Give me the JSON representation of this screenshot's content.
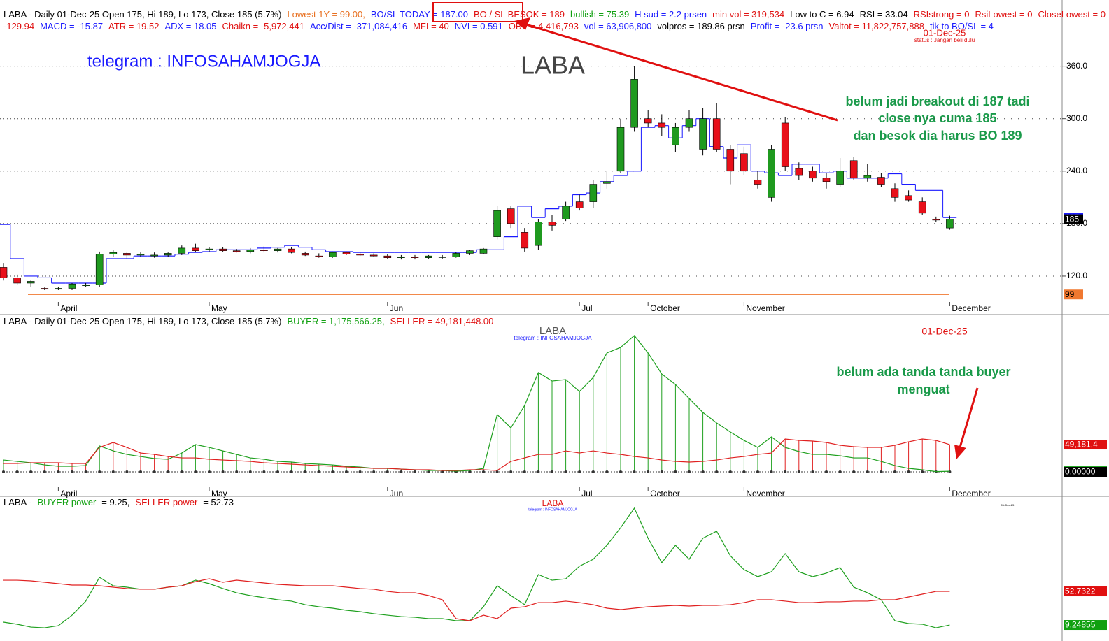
{
  "chart_data": [
    {
      "type": "candlestick",
      "title": "LABA",
      "header": [
        [
          {
            "text": "LABA - Daily 01-Dec-25 Open 175, Hi 189, Lo 173, Close 185 (5.7%)",
            "color": "#000000"
          },
          {
            "text": "Lowest 1Y  = 99.00,",
            "color": "#e87020"
          },
          {
            "text": "BO/SL TODAY  = 187.00",
            "color": "#1a1aff"
          },
          {
            "text": "BO / SL BESOK  = 189",
            "color": "#e01010"
          },
          {
            "text": "bullish = 75.39",
            "color": "#10a010"
          },
          {
            "text": "H sud = 2.2 prsen",
            "color": "#1a1aff"
          },
          {
            "text": "min vol = 319,534",
            "color": "#e01010"
          },
          {
            "text": "Low to C  = 6.94",
            "color": "#000000"
          },
          {
            "text": "RSI = 33.04",
            "color": "#000000"
          },
          {
            "text": "RSIstrong = 0",
            "color": "#e01010"
          },
          {
            "text": "RsiLowest = 0",
            "color": "#e01010"
          },
          {
            "text": "CloseLowest = 0",
            "color": "#e01010"
          },
          {
            "text": "CCI =",
            "color": "#e01010"
          }
        ],
        [
          {
            "text": "-129.94",
            "color": "#e01010"
          },
          {
            "text": "MACD = -15.87",
            "color": "#1a1aff"
          },
          {
            "text": "ATR = 19.52",
            "color": "#e01010"
          },
          {
            "text": "ADX = 18.05",
            "color": "#1a1aff"
          },
          {
            "text": "Chaikn = -5,972,441",
            "color": "#e01010"
          },
          {
            "text": "Acc/Dist = -371,084,416",
            "color": "#1a1aff"
          },
          {
            "text": "MFI = 40",
            "color": "#e01010"
          },
          {
            "text": "NVI =  0.591",
            "color": "#1a1aff"
          },
          {
            "text": "OBV = 4,416,793",
            "color": "#e01010"
          },
          {
            "text": "vol = 63,906,800",
            "color": "#1a1aff"
          },
          {
            "text": "volpros = 189.86 prsn",
            "color": "#000000"
          },
          {
            "text": "Profit = -23.6 prsn",
            "color": "#1a1aff"
          },
          {
            "text": "Valtot = 11,822,757,888",
            "color": "#e01010"
          },
          {
            "text": "tik to BO/SL = 4",
            "color": "#1a1aff"
          }
        ]
      ],
      "annotations": [
        {
          "text": "telegram : INFOSAHAMJOGJA",
          "color": "#1a1aff"
        },
        {
          "text": "belum jadi breakout di 187 tadi",
          "color": "#1a9a4a"
        },
        {
          "text": "close nya cuma 185",
          "color": "#1a9a4a"
        },
        {
          "text": "dan besok dia harus BO 189",
          "color": "#1a9a4a"
        },
        {
          "text": "01-Dec-25",
          "color": "#e01010"
        },
        {
          "text": "status : Jangan beli dulu",
          "color": "#e01010"
        }
      ],
      "categories": [
        null,
        null,
        null,
        null,
        "April",
        null,
        null,
        null,
        null,
        null,
        null,
        null,
        null,
        null,
        null,
        "May",
        null,
        null,
        null,
        null,
        null,
        null,
        null,
        null,
        null,
        null,
        null,
        null,
        "Jun",
        null,
        null,
        null,
        null,
        null,
        null,
        null,
        null,
        null,
        null,
        null,
        null,
        null,
        "Jul",
        null,
        null,
        null,
        null,
        "October",
        null,
        null,
        null,
        null,
        null,
        null,
        "November",
        null,
        null,
        null,
        null,
        null,
        null,
        null,
        null,
        null,
        null,
        null,
        null,
        null,
        null,
        "December"
      ],
      "open": [
        130,
        118,
        112,
        106,
        105,
        106,
        109,
        110,
        145,
        146,
        144,
        143,
        144,
        146,
        152,
        150,
        151,
        149,
        148,
        150,
        149,
        151,
        146,
        143,
        142,
        147,
        145,
        144,
        143,
        141,
        142,
        141,
        142,
        142,
        146,
        146,
        165,
        197,
        170,
        155,
        182,
        185,
        205,
        205,
        226,
        240,
        290,
        300,
        295,
        270,
        290,
        265,
        300,
        265,
        260,
        230,
        210,
        295,
        243,
        240,
        232,
        225,
        252,
        232,
        233,
        220,
        212,
        205,
        185,
        175
      ],
      "high": [
        135,
        122,
        115,
        107,
        108,
        112,
        112,
        148,
        150,
        148,
        147,
        147,
        147,
        155,
        157,
        153,
        153,
        151,
        152,
        154,
        152,
        153,
        148,
        146,
        148,
        148,
        147,
        146,
        145,
        144,
        144,
        144,
        144,
        147,
        150,
        152,
        200,
        200,
        175,
        185,
        190,
        205,
        213,
        230,
        240,
        300,
        360,
        310,
        305,
        295,
        310,
        312,
        318,
        270,
        268,
        240,
        270,
        302,
        250,
        245,
        238,
        255,
        256,
        248,
        238,
        226,
        218,
        210,
        188,
        189
      ],
      "low": [
        115,
        110,
        108,
        104,
        104,
        104,
        108,
        108,
        142,
        140,
        142,
        141,
        142,
        144,
        148,
        148,
        148,
        147,
        146,
        147,
        147,
        146,
        143,
        141,
        141,
        144,
        143,
        142,
        140,
        139,
        139,
        140,
        140,
        141,
        144,
        145,
        162,
        175,
        148,
        150,
        172,
        183,
        195,
        198,
        220,
        238,
        285,
        290,
        280,
        262,
        285,
        258,
        262,
        225,
        235,
        220,
        205,
        240,
        230,
        228,
        220,
        222,
        230,
        228,
        222,
        205,
        205,
        190,
        182,
        173
      ],
      "close": [
        118,
        112,
        114,
        105,
        106,
        111,
        110,
        145,
        147,
        144,
        145,
        144,
        146,
        152,
        149,
        151,
        149,
        148,
        150,
        149,
        151,
        147,
        144,
        142,
        147,
        145,
        144,
        143,
        141,
        142,
        141,
        143,
        142,
        146,
        149,
        151,
        195,
        180,
        152,
        182,
        178,
        200,
        198,
        225,
        228,
        290,
        345,
        295,
        290,
        290,
        300,
        300,
        265,
        240,
        240,
        225,
        265,
        245,
        235,
        232,
        228,
        240,
        232,
        235,
        225,
        210,
        207,
        192,
        184,
        185
      ],
      "up_color": "#1f9a1f",
      "down_color": "#e8101a",
      "series": [
        {
          "color": "#1a1aff",
          "values": [
            179,
            140,
            120,
            118,
            112,
            112,
            112,
            112,
            140,
            140,
            143,
            143,
            143,
            145,
            147,
            148,
            150,
            150,
            150,
            152,
            153,
            155,
            153,
            150,
            148,
            148,
            147,
            147,
            147,
            147,
            147,
            147,
            147,
            147,
            147,
            150,
            150,
            165,
            200,
            187,
            197,
            200,
            213,
            215,
            228,
            235,
            240,
            290,
            292,
            278,
            292,
            300,
            268,
            255,
            270,
            240,
            238,
            235,
            248,
            248,
            238,
            240,
            232,
            232,
            232,
            237,
            225,
            218,
            218,
            187
          ]
        }
      ],
      "markers": [
        {
          "value": 187,
          "color": "#1a1aff"
        },
        {
          "value": 185,
          "color": "#000000"
        },
        {
          "value": 99,
          "color": "#f07830",
          "hline": true
        }
      ],
      "ylim": [
        90.4,
        427.6
      ],
      "yticks": [
        {
          "value": 120,
          "label": "120.0"
        },
        {
          "value": 180,
          "label": "180.0"
        },
        {
          "value": 240,
          "label": "240.0"
        },
        {
          "value": 300,
          "label": "300.0"
        },
        {
          "value": 360,
          "label": "360.0"
        }
      ],
      "grid": true
    },
    {
      "type": "line",
      "title": "LABA",
      "header": [
        [
          {
            "text": "LABA - Daily 01-Dec-25 Open 175, Hi 189, Lo 173, Close 185 (5.7%)",
            "color": "#000000"
          },
          {
            "text": "BUYER = 1,175,566.25,",
            "color": "#10a010"
          },
          {
            "text": "SELLER = 49,181,448.00",
            "color": "#e01010"
          }
        ]
      ],
      "annotations": [
        {
          "text": "telegram : INFOSAHAMJOGJA",
          "color": "#1a1aff"
        },
        {
          "text": "01-Dec-25",
          "color": "#e01010"
        },
        {
          "text": "belum ada tanda tanda buyer",
          "color": "#1a9a4a"
        },
        {
          "text": "menguat",
          "color": "#1a9a4a"
        }
      ],
      "categories": [
        null,
        null,
        null,
        null,
        "April",
        null,
        null,
        null,
        null,
        null,
        null,
        null,
        null,
        null,
        null,
        "May",
        null,
        null,
        null,
        null,
        null,
        null,
        null,
        null,
        null,
        null,
        null,
        null,
        "Jun",
        null,
        null,
        null,
        null,
        null,
        null,
        null,
        null,
        null,
        null,
        null,
        null,
        null,
        "Jul",
        null,
        null,
        null,
        null,
        "October",
        null,
        null,
        null,
        null,
        null,
        null,
        "November",
        null,
        null,
        null,
        null,
        null,
        null,
        null,
        null,
        null,
        null,
        null,
        null,
        null,
        null,
        "December"
      ],
      "series": [
        {
          "color": "#1fa01f",
          "values": [
            21400000,
            18900000,
            16400000,
            12600000,
            10100000,
            10100000,
            11300000,
            46700000,
            37800000,
            31500000,
            27700000,
            24000000,
            22700000,
            34000000,
            49200000,
            44100000,
            37800000,
            31500000,
            25200000,
            22700000,
            18900000,
            17700000,
            15100000,
            13900000,
            12600000,
            10100000,
            8800000,
            6300000,
            6300000,
            5000000,
            3800000,
            2500000,
            2500000,
            1300000,
            2500000,
            6300000,
            103400000,
            79400000,
            119800000,
            179100000,
            163900000,
            166500000,
            145000000,
            170200000,
            214400000,
            224500000,
            245900000,
            214400000,
            176500000,
            157600000,
            132400000,
            107200000,
            88300000,
            71900000,
            56700000,
            44100000,
            63100000,
            44100000,
            36600000,
            31500000,
            31500000,
            29000000,
            25200000,
            25200000,
            18900000,
            11300000,
            6300000,
            3800000,
            500000,
            1175566.25
          ]
        },
        {
          "color": "#e02020",
          "values": [
            15100000,
            15100000,
            16400000,
            16400000,
            16400000,
            15100000,
            15100000,
            44100000,
            53000000,
            44100000,
            34000000,
            31500000,
            27700000,
            25200000,
            25200000,
            22700000,
            21400000,
            20200000,
            18900000,
            16400000,
            15100000,
            13900000,
            12600000,
            11300000,
            10100000,
            8800000,
            7600000,
            6300000,
            6300000,
            5000000,
            3800000,
            3800000,
            2500000,
            2500000,
            3800000,
            3800000,
            2500000,
            18900000,
            25200000,
            31500000,
            31500000,
            37800000,
            34000000,
            37800000,
            34000000,
            31500000,
            27700000,
            25200000,
            21400000,
            18900000,
            17700000,
            18900000,
            21400000,
            25200000,
            27700000,
            31500000,
            34000000,
            59300000,
            56700000,
            55500000,
            53000000,
            47900000,
            45400000,
            44100000,
            44100000,
            47900000,
            54200000,
            59300000,
            56700000,
            49181448
          ]
        }
      ],
      "stems": true,
      "markers": [
        {
          "value": 49181448,
          "label": "49,181,4",
          "color": "#e01010"
        },
        {
          "value": 1175566.25,
          "label": "1,175,5",
          "color": "#10a010"
        },
        {
          "value": 0,
          "label": "0.00000",
          "color": "#000000"
        }
      ],
      "ylim": [
        -27700000,
        268600000
      ]
    },
    {
      "type": "line",
      "title": "LABA",
      "header": [
        [
          {
            "text": "LABA -",
            "color": "#000000"
          },
          {
            "text": "BUYER power",
            "color": "#10a010"
          },
          {
            "text": "= 9.25,",
            "color": "#000000"
          },
          {
            "text": "SELLER power",
            "color": "#e01010"
          },
          {
            "text": "= 52.73",
            "color": "#000000"
          }
        ]
      ],
      "annotations": [
        {
          "text": "telegram : INFOSAHAMJOGJA",
          "color": "#1a1aff"
        },
        {
          "text": "01-Dec-25",
          "color": "#000000"
        }
      ],
      "series": [
        {
          "color": "#1fa01f",
          "values": [
            12.9,
            10.2,
            6.5,
            5.6,
            8.3,
            21.9,
            40.1,
            70.9,
            60.0,
            58.2,
            55.5,
            55.5,
            58.2,
            60.0,
            67.2,
            62.7,
            56.4,
            50.9,
            47.3,
            44.6,
            41.9,
            40.1,
            35.5,
            32.8,
            31.0,
            28.3,
            26.5,
            23.8,
            21.9,
            20.1,
            19.2,
            17.4,
            17.4,
            14.7,
            14.7,
            32.8,
            60.0,
            47.3,
            35.5,
            74.5,
            67.2,
            69.0,
            85.4,
            94.4,
            112.5,
            135.2,
            160.6,
            121.6,
            89.9,
            112.5,
            94.4,
            121.6,
            130.7,
            98.9,
            80.8,
            71.8,
            78.1,
            101.7,
            78.1,
            71.8,
            76.3,
            83.5,
            58.2,
            50.9,
            41.9,
            14.7,
            11.1,
            10.2,
            5.6,
            9.25
          ]
        },
        {
          "color": "#e02020",
          "values": [
            67.2,
            67.2,
            66.3,
            64.5,
            62.7,
            60.9,
            60.9,
            60.0,
            58.2,
            56.4,
            55.5,
            55.5,
            58.2,
            60.0,
            65.4,
            69.0,
            64.5,
            67.2,
            65.4,
            63.6,
            61.8,
            60.9,
            60.0,
            60.0,
            60.0,
            58.2,
            56.4,
            55.5,
            52.7,
            50.9,
            50.9,
            47.3,
            41.9,
            17.4,
            14.7,
            21.9,
            17.4,
            31.0,
            32.8,
            38.2,
            38.2,
            40.1,
            38.2,
            35.5,
            31.0,
            29.2,
            31.0,
            32.8,
            33.7,
            34.6,
            33.7,
            34.6,
            34.6,
            35.5,
            38.2,
            41.9,
            41.9,
            40.1,
            38.2,
            38.2,
            39.2,
            39.2,
            40.1,
            40.1,
            41.9,
            41.9,
            45.5,
            49.1,
            52.7,
            52.73
          ]
        }
      ],
      "markers": [
        {
          "value": 52.73,
          "label": "52.7322",
          "color": "#e01010"
        },
        {
          "value": 9.25,
          "label": "9.24855",
          "color": "#10a010"
        }
      ],
      "ylim": [
        -2.5,
        174.1
      ]
    }
  ]
}
